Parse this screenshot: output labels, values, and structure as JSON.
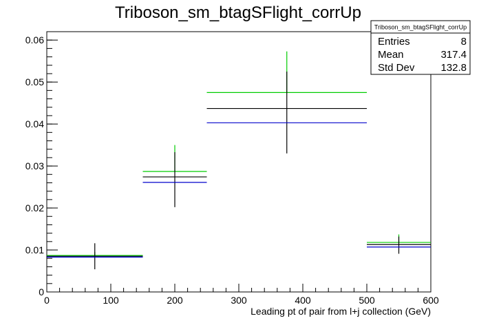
{
  "chart_data": {
    "type": "histogram-errorbars",
    "title": "Triboson_sm_btagSFlight_corrUp",
    "xlabel": "Leading pt of pair from l+j collection (GeV)",
    "ylabel": "",
    "xlim": [
      0,
      600
    ],
    "ylim": [
      0,
      0.062
    ],
    "x_ticks": [
      0,
      100,
      200,
      300,
      400,
      500,
      600
    ],
    "x_tick_labels": [
      "0",
      "100",
      "200",
      "300",
      "400",
      "500",
      "600"
    ],
    "y_ticks": [
      0,
      0.01,
      0.02,
      0.03,
      0.04,
      0.05,
      0.06
    ],
    "y_tick_labels": [
      "0",
      "0.01",
      "0.02",
      "0.03",
      "0.04",
      "0.05",
      "0.06"
    ],
    "grid": false,
    "stats_box": {
      "position": "top-right",
      "title": "Triboson_sm_btagSFlight_corrUp",
      "rows": [
        {
          "label": "Entries",
          "value": "8"
        },
        {
          "label": "Mean",
          "value": "317.4"
        },
        {
          "label": "Std Dev",
          "value": "132.8"
        }
      ]
    },
    "bins": [
      {
        "xlow": 0,
        "xhigh": 150,
        "center": 75
      },
      {
        "xlow": 150,
        "xhigh": 250,
        "center": 200
      },
      {
        "xlow": 250,
        "xhigh": 500,
        "center": 375
      },
      {
        "xlow": 500,
        "xhigh": 600,
        "center": 550
      }
    ],
    "series": [
      {
        "color": "#00cc00",
        "values": [
          0.0087,
          0.0287,
          0.0475,
          0.0118
        ],
        "err_high": [
          0.0095,
          0.035,
          0.0573,
          0.0137
        ],
        "err_low": [
          null,
          null,
          null,
          null
        ]
      },
      {
        "color": "#000000",
        "values": [
          0.0085,
          0.0274,
          0.0437,
          0.0113
        ],
        "err_high": [
          0.0116,
          0.0333,
          0.0525,
          0.0132
        ],
        "err_low": [
          0.0054,
          0.0202,
          0.033,
          0.0091
        ]
      },
      {
        "color": "#0000cc",
        "values": [
          0.0083,
          0.0261,
          0.0403,
          0.0107
        ],
        "err_high": [
          null,
          null,
          null,
          null
        ],
        "err_low": [
          null,
          null,
          null,
          null
        ]
      }
    ]
  }
}
